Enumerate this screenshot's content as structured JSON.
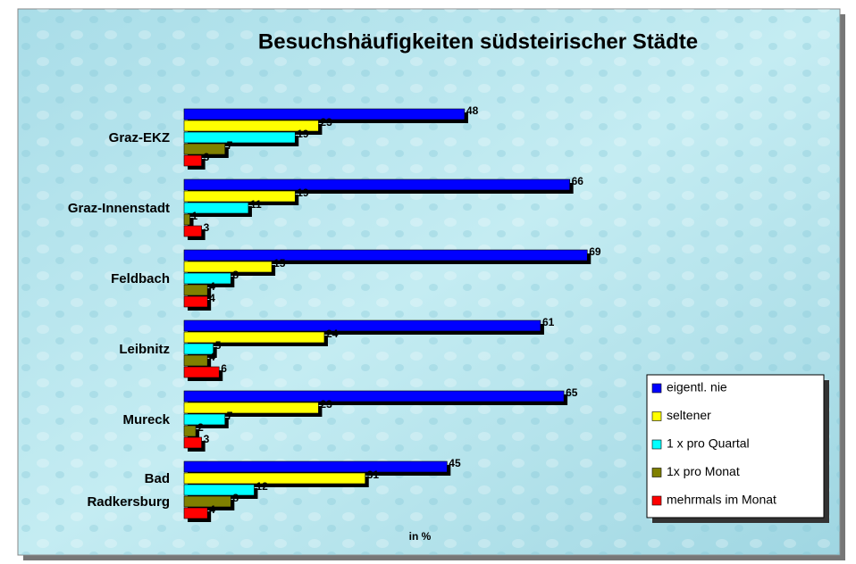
{
  "chart_data": {
    "type": "hbar",
    "title": "Besuchshäufigkeiten südsteirischer Städte",
    "x_label": "in %",
    "categories": [
      "Graz-EKZ",
      "Graz-Innenstadt",
      "Feldbach",
      "Leibnitz",
      "Mureck",
      "Bad\nRadkersburg"
    ],
    "series": [
      {
        "name": "eigentl. nie",
        "color": "#0000ff",
        "values": [
          48,
          66,
          69,
          61,
          65,
          45
        ]
      },
      {
        "name": "seltener",
        "color": "#ffff00",
        "values": [
          23,
          19,
          15,
          24,
          23,
          31
        ]
      },
      {
        "name": "1 x pro Quartal",
        "color": "#00ffff",
        "values": [
          19,
          11,
          8,
          5,
          7,
          12
        ]
      },
      {
        "name": "1x pro Monat",
        "color": "#808000",
        "values": [
          7,
          1,
          4,
          4,
          2,
          8
        ]
      },
      {
        "name": "mehrmals im Monat",
        "color": "#ff0000",
        "values": [
          3,
          3,
          4,
          6,
          3,
          4
        ]
      }
    ],
    "legend": "right"
  }
}
